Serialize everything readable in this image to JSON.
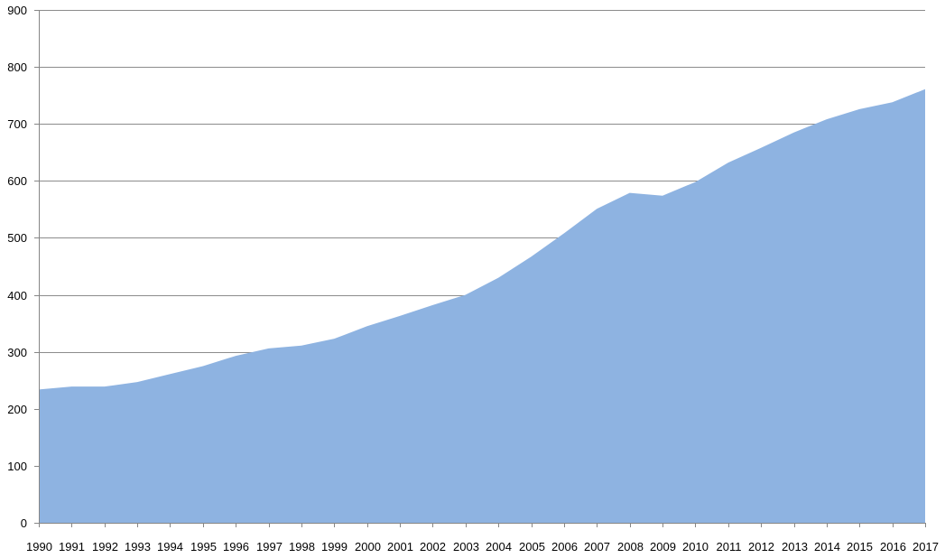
{
  "chart_data": {
    "type": "area",
    "title": "",
    "xlabel": "",
    "ylabel": "",
    "x": [
      "1990",
      "1991",
      "1992",
      "1993",
      "1994",
      "1995",
      "1996",
      "1997",
      "1998",
      "1999",
      "2000",
      "2001",
      "2002",
      "2003",
      "2004",
      "2005",
      "2006",
      "2007",
      "2008",
      "2009",
      "2010",
      "2011",
      "2012",
      "2013",
      "2014",
      "2015",
      "2016",
      "2017"
    ],
    "series": [
      {
        "values": [
          234,
          239,
          239,
          247,
          261,
          275,
          293,
          306,
          311,
          323,
          345,
          363,
          382,
          400,
          430,
          467,
          508,
          551,
          579,
          574,
          598,
          632,
          658,
          685,
          708,
          726,
          738,
          761
        ],
        "color": "#8eb3e1"
      }
    ],
    "ylim": [
      0,
      900
    ],
    "yticks": [
      0,
      100,
      200,
      300,
      400,
      500,
      600,
      700,
      800,
      900
    ],
    "grid": true,
    "legend": "none"
  }
}
